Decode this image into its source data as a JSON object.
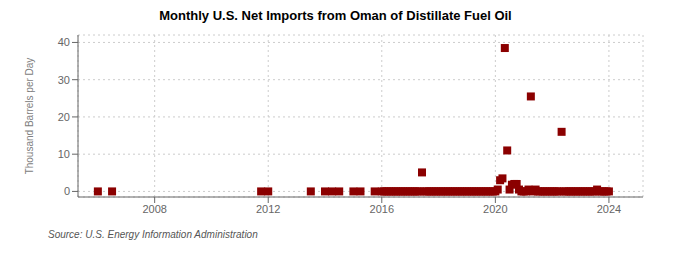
{
  "chart_data": {
    "type": "scatter",
    "title": "Monthly U.S. Net Imports from Oman of Distillate Fuel Oil",
    "ylabel": "Thousand Barrels per Day",
    "annotations": [
      "Source: U.S. Energy Information Administration"
    ],
    "color": "#8b0000",
    "marker": "square",
    "grid": true,
    "xlim": [
      2005.3,
      2025.2
    ],
    "xticks": [
      2008,
      2012,
      2016,
      2020,
      2024
    ],
    "ylim": [
      -1.5,
      42
    ],
    "yticks": [
      0,
      10,
      20,
      30,
      40
    ],
    "x": [
      2006.0,
      2006.5,
      2011.75,
      2012.0,
      2013.5,
      2014.0,
      2014.25,
      2014.5,
      2015.0,
      2015.25,
      2015.75,
      2016.0,
      2016.083,
      2016.167,
      2016.25,
      2016.333,
      2016.417,
      2016.5,
      2016.583,
      2016.667,
      2016.75,
      2016.833,
      2016.917,
      2017.0,
      2017.083,
      2017.167,
      2017.25,
      2017.333,
      2017.417,
      2017.5,
      2017.583,
      2017.667,
      2017.75,
      2017.833,
      2017.917,
      2018.0,
      2018.083,
      2018.167,
      2018.25,
      2018.333,
      2018.417,
      2018.5,
      2018.583,
      2018.667,
      2018.75,
      2018.833,
      2018.917,
      2019.0,
      2019.083,
      2019.167,
      2019.25,
      2019.333,
      2019.417,
      2019.5,
      2019.583,
      2019.667,
      2019.75,
      2019.833,
      2019.917,
      2020.0,
      2020.083,
      2020.167,
      2020.25,
      2020.333,
      2020.417,
      2020.5,
      2020.583,
      2020.667,
      2020.75,
      2020.833,
      2020.917,
      2021.0,
      2021.083,
      2021.167,
      2021.25,
      2021.333,
      2021.417,
      2021.5,
      2021.583,
      2021.667,
      2021.75,
      2021.833,
      2021.917,
      2022.0,
      2022.083,
      2022.167,
      2022.25,
      2022.333,
      2022.417,
      2022.5,
      2022.583,
      2022.667,
      2022.75,
      2022.833,
      2022.917,
      2023.0,
      2023.083,
      2023.167,
      2023.25,
      2023.333,
      2023.417,
      2023.5,
      2023.583,
      2023.667,
      2023.75,
      2023.833,
      2023.917,
      2024.0
    ],
    "values": [
      0,
      0,
      0,
      0,
      0,
      0,
      0,
      0,
      0,
      0,
      0,
      0,
      0,
      0,
      0,
      0,
      0,
      0,
      0,
      0,
      0,
      0,
      0,
      0,
      0,
      0,
      0,
      0,
      5.1,
      0,
      0,
      0,
      0,
      0,
      0,
      0,
      0,
      0,
      0,
      0,
      0,
      0,
      0,
      0,
      0,
      0,
      0,
      0,
      0,
      0,
      0,
      0,
      0,
      0,
      0,
      0,
      0,
      0,
      0,
      0,
      0.5,
      3.0,
      3.5,
      38.5,
      11.0,
      0.5,
      1.8,
      2.0,
      2.0,
      0.5,
      0,
      0,
      0,
      0.5,
      25.5,
      0,
      0.5,
      0,
      0,
      0,
      0,
      0,
      0,
      0,
      0,
      0,
      0,
      16.0,
      0,
      0,
      0,
      0,
      0,
      0,
      0,
      0,
      0,
      0,
      0,
      0,
      0,
      0,
      0.5,
      0,
      0,
      0,
      0,
      0
    ]
  }
}
